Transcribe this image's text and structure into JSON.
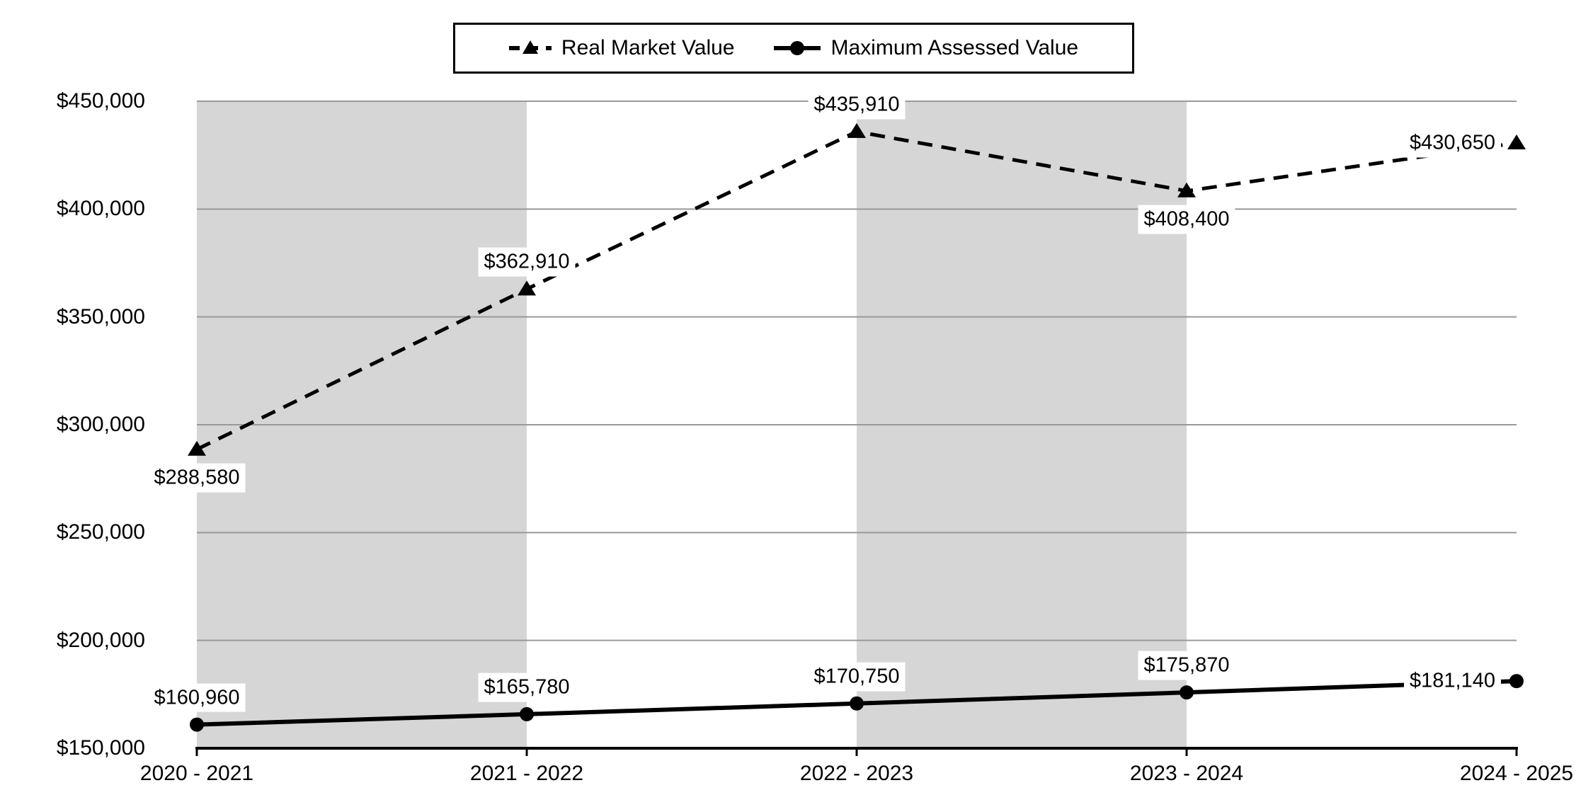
{
  "chart_data": {
    "type": "line",
    "title": "",
    "categories": [
      "2020 - 2021",
      "2021 - 2022",
      "2022 - 2023",
      "2023 - 2024",
      "2024 - 2025"
    ],
    "xlabel": "",
    "ylabel": "",
    "ylim": [
      150000,
      450000
    ],
    "ytick_values": [
      450000,
      400000,
      350000,
      300000,
      250000,
      200000,
      150000
    ],
    "ytick_labels": [
      "$450,000",
      "$400,000",
      "$350,000",
      "$300,000",
      "$250,000",
      "$200,000",
      "$150,000"
    ],
    "grid": true,
    "legend_position": "top-center",
    "shaded_bands": [
      [
        0,
        1
      ],
      [
        2,
        3
      ]
    ],
    "colors": {
      "line": "#000000",
      "band": "#d6d6d6",
      "gridline": "#999999",
      "label_bg": "#ffffff"
    },
    "series": [
      {
        "name": "Real Market Value",
        "line_style": "dashed",
        "marker": "triangle",
        "values": [
          288580,
          362910,
          435910,
          408400,
          430650
        ],
        "point_labels": [
          "$288,580",
          "$362,910",
          "$435,910",
          "$408,400",
          "$430,650"
        ],
        "label_placement": [
          "below",
          "above",
          "above",
          "below",
          "left"
        ]
      },
      {
        "name": "Maximum Assessed Value",
        "line_style": "solid",
        "marker": "circle",
        "values": [
          160960,
          165780,
          170750,
          175870,
          181140
        ],
        "point_labels": [
          "$160,960",
          "$165,780",
          "$170,750",
          "$175,870",
          "$181,140"
        ],
        "label_placement": [
          "above",
          "above",
          "above",
          "above",
          "left"
        ]
      }
    ]
  }
}
